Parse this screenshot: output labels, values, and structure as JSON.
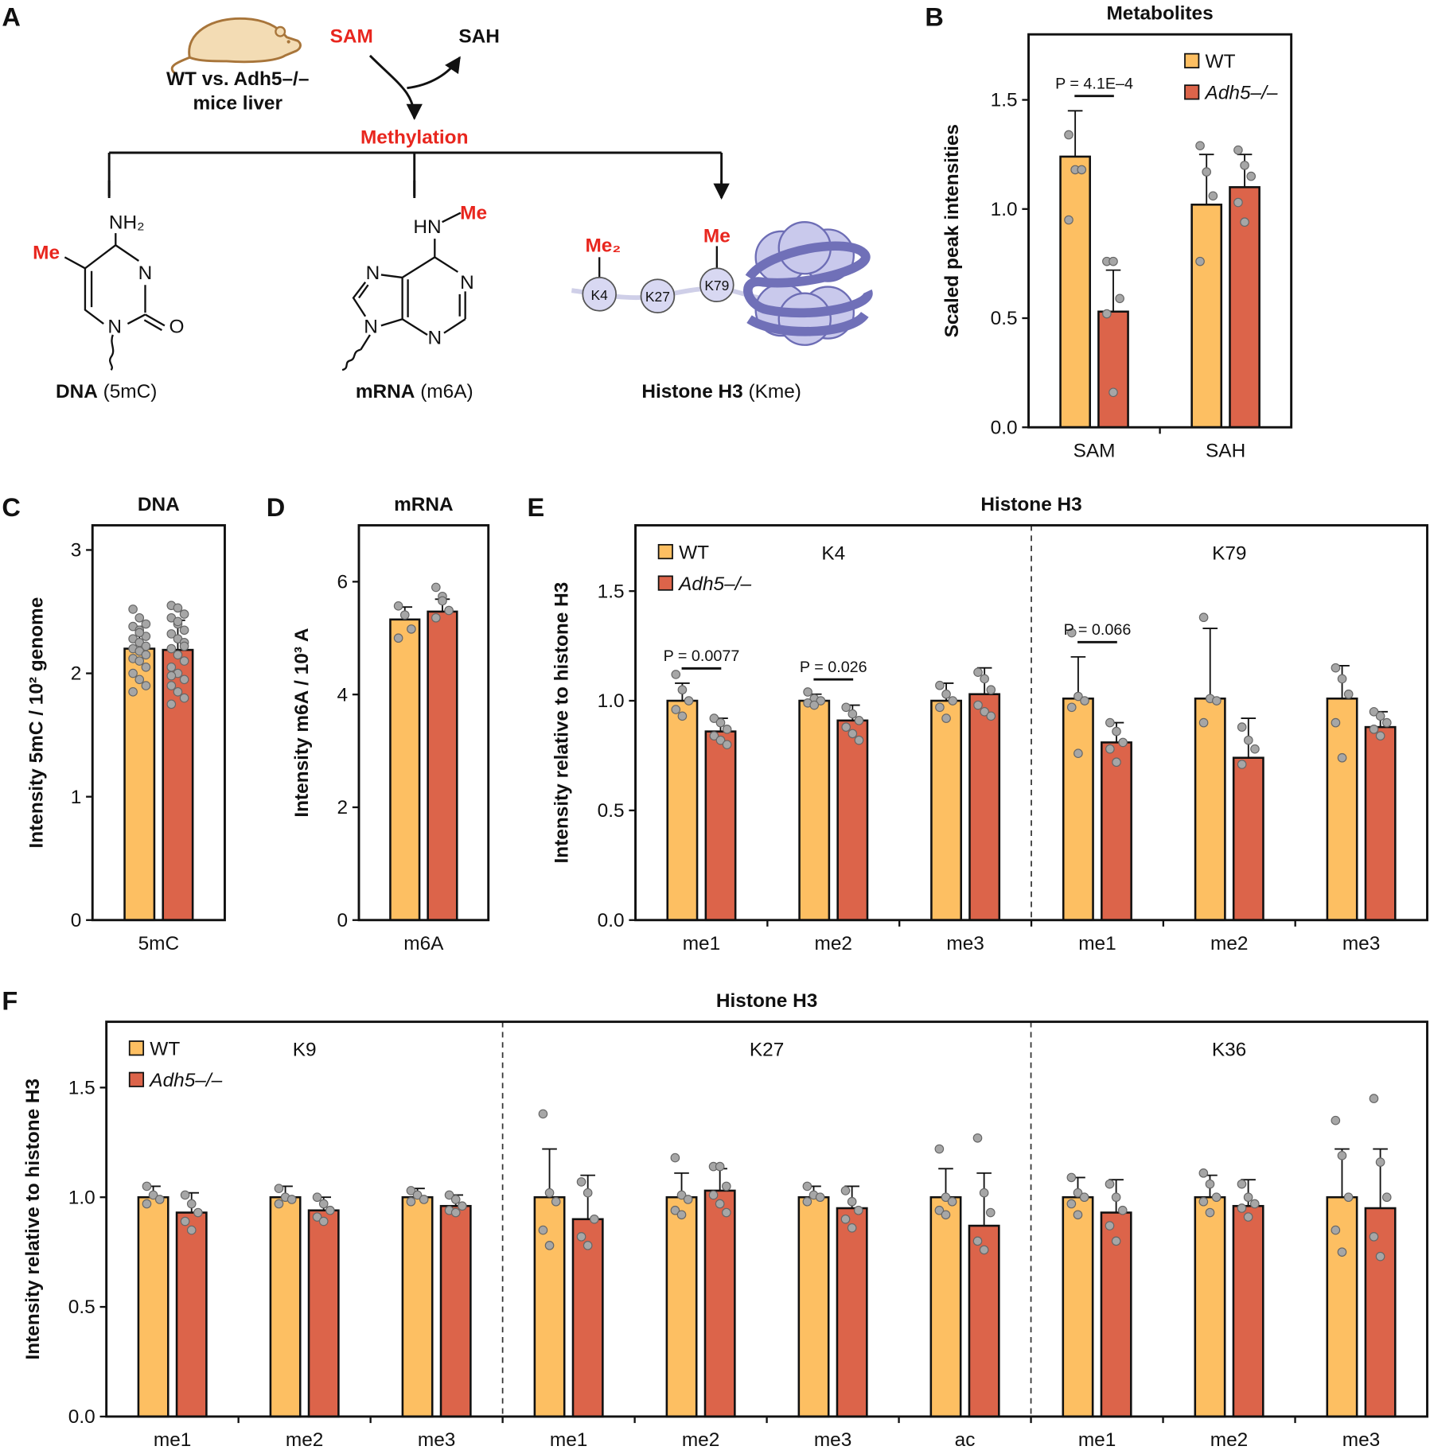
{
  "diagram": {
    "panel": "A",
    "mouse_label": [
      "WT vs. Adh5–/–",
      "mice liver"
    ],
    "substrate": "SAM",
    "product": "SAH",
    "process": "Methylation",
    "dna_atoms": [
      "NH₂",
      "Me",
      "N",
      "N",
      "O"
    ],
    "mrna_atoms": [
      "HN",
      "Me",
      "N",
      "N",
      "N",
      "N",
      "N"
    ],
    "histone_labels": [
      "Me₂",
      "Me",
      "K4",
      "K27",
      "K79"
    ],
    "targets": [
      {
        "name": "DNA",
        "detail": "(5mC)"
      },
      {
        "name": "mRNA",
        "detail": "(m6A)"
      },
      {
        "name": "Histone H3",
        "detail": "(Kme)"
      }
    ]
  },
  "chart_data": [
    {
      "type": "bar",
      "panel": "B",
      "title": "Metabolites",
      "y_label": "Scaled peak intensities",
      "legend": "upper right",
      "categories": [
        "SAM",
        "SAH"
      ],
      "series": [
        {
          "name": "WT",
          "color": "#fdbf62",
          "values": [
            1.24,
            1.02
          ],
          "errors": [
            0.21,
            0.23
          ],
          "points": [
            [
              1.34,
              1.18,
              1.18,
              0.95
            ],
            [
              1.29,
              1.17,
              1.06,
              0.76
            ]
          ]
        },
        {
          "name": "Adh5–/–",
          "color": "#dc644a",
          "values": [
            0.53,
            1.1
          ],
          "errors": [
            0.19,
            0.15
          ],
          "points": [
            [
              0.76,
              0.76,
              0.59,
              0.52,
              0.16
            ],
            [
              1.27,
              1.2,
              1.15,
              1.03,
              0.94
            ]
          ]
        }
      ],
      "annotations": [
        "P = 4.1E–4"
      ],
      "ylim": [
        0,
        1.8
      ],
      "yticks": [
        {
          "value": 0,
          "label": "0.0"
        },
        {
          "value": 0.5,
          "label": "0.5"
        },
        {
          "value": 1,
          "label": "1.0"
        },
        {
          "value": 1.5,
          "label": "1.5"
        }
      ]
    },
    {
      "type": "bar",
      "panel": "C",
      "title": "DNA",
      "y_label": "Intensity 5mC / 10² genome",
      "categories": [
        "5mC"
      ],
      "series": [
        {
          "name": "WT",
          "color": "#fdbf62",
          "values": [
            2.2
          ],
          "errors": [
            0.18
          ],
          "points": [
            [
              2.52,
              2.45,
              2.4,
              2.38,
              2.35,
              2.3,
              2.28,
              2.25,
              2.22,
              2.2,
              2.18,
              2.15,
              2.12,
              2.1,
              2.05,
              2.0,
              1.95,
              1.9,
              1.85,
              2.33
            ]
          ]
        },
        {
          "name": "Adh5–/–",
          "color": "#dc644a",
          "values": [
            2.19
          ],
          "errors": [
            0.24
          ],
          "points": [
            [
              2.55,
              2.53,
              2.48,
              2.45,
              2.4,
              2.35,
              2.32,
              2.28,
              2.25,
              2.2,
              2.15,
              2.1,
              2.05,
              2.0,
              1.95,
              1.9,
              1.85,
              1.8,
              1.75,
              2.42,
              2.22,
              1.98
            ]
          ]
        }
      ],
      "ylim": [
        0,
        3.2
      ],
      "yticks": [
        0,
        1,
        2,
        3
      ]
    },
    {
      "type": "bar",
      "panel": "D",
      "title": "mRNA",
      "y_label": "Intensity m6A / 10³ A",
      "categories": [
        "m6A"
      ],
      "series": [
        {
          "name": "WT",
          "color": "#fdbf62",
          "values": [
            5.33
          ],
          "errors": [
            0.22
          ],
          "points": [
            [
              5.57,
              5.41,
              5.16,
              5.0
            ]
          ]
        },
        {
          "name": "Adh5–/–",
          "color": "#dc644a",
          "values": [
            5.47
          ],
          "errors": [
            0.22
          ],
          "points": [
            [
              5.9,
              5.74,
              5.49,
              5.36,
              5.66
            ]
          ]
        }
      ],
      "ylim": [
        0,
        7
      ],
      "yticks": [
        0,
        2,
        4,
        6
      ]
    },
    {
      "type": "bar",
      "panel": "E",
      "title": "Histone H3",
      "y_label": "Intensity relative to histone H3",
      "legend": "upper left",
      "group_labels": [
        "K4",
        "K79"
      ],
      "categories": [
        "me1",
        "me2",
        "me3",
        "me1",
        "me2",
        "me3"
      ],
      "series": [
        {
          "name": "WT",
          "color": "#fdbf62",
          "values": [
            1.0,
            1.0,
            1.0,
            1.01,
            1.01,
            1.01
          ],
          "errors": [
            0.08,
            0.03,
            0.08,
            0.19,
            0.32,
            0.15
          ],
          "points": [
            [
              1.12,
              1.05,
              1.0,
              0.96,
              0.93
            ],
            [
              1.04,
              1.01,
              1.0,
              0.99,
              0.98
            ],
            [
              1.07,
              1.03,
              1.0,
              0.97,
              0.92
            ],
            [
              1.31,
              1.02,
              1.0,
              0.97,
              0.76
            ],
            [
              1.38,
              1.01,
              1.0,
              0.9
            ],
            [
              1.15,
              1.1,
              1.03,
              0.9,
              0.74
            ]
          ]
        },
        {
          "name": "Adh5–/–",
          "color": "#dc644a",
          "values": [
            0.86,
            0.91,
            1.03,
            0.81,
            0.74,
            0.88
          ],
          "errors": [
            0.06,
            0.07,
            0.12,
            0.09,
            0.18,
            0.07
          ],
          "points": [
            [
              0.92,
              0.9,
              0.87,
              0.84,
              0.82,
              0.8
            ],
            [
              0.97,
              0.94,
              0.91,
              0.88,
              0.85,
              0.82
            ],
            [
              1.13,
              1.1,
              1.05,
              0.98,
              0.95,
              0.93
            ],
            [
              0.9,
              0.86,
              0.81,
              0.78,
              0.72
            ],
            [
              0.88,
              0.82,
              0.78,
              0.71
            ],
            [
              0.95,
              0.93,
              0.9,
              0.87,
              0.84
            ]
          ]
        }
      ],
      "annotations": [
        "P = 0.0077",
        "P = 0.026",
        "P = 0.066"
      ],
      "ylim": [
        0,
        1.8
      ],
      "yticks": [
        {
          "value": 0,
          "label": "0.0"
        },
        {
          "value": 0.5,
          "label": "0.5"
        },
        {
          "value": 1,
          "label": "1.0"
        },
        {
          "value": 1.5,
          "label": "1.5"
        }
      ]
    },
    {
      "type": "bar",
      "panel": "F",
      "title": "Histone H3",
      "y_label": "Intensity relative to histone H3",
      "legend": "upper left",
      "group_labels": [
        "K9",
        "K27",
        "K36"
      ],
      "categories": [
        "me1",
        "me2",
        "me3",
        "me1",
        "me2",
        "me3",
        "ac",
        "me1",
        "me2",
        "me3"
      ],
      "series": [
        {
          "name": "WT",
          "color": "#fdbf62",
          "values": [
            1.0,
            1.0,
            1.0,
            1.0,
            1.0,
            1.0,
            1.0,
            1.0,
            1.0,
            1.0
          ],
          "errors": [
            0.05,
            0.05,
            0.04,
            0.22,
            0.11,
            0.05,
            0.13,
            0.09,
            0.1,
            0.22
          ],
          "points": [
            [
              1.05,
              1.01,
              0.99,
              0.97
            ],
            [
              1.04,
              1.0,
              0.99,
              0.97
            ],
            [
              1.03,
              1.01,
              0.99,
              0.98
            ],
            [
              1.38,
              1.02,
              0.98,
              0.85,
              0.78
            ],
            [
              1.18,
              1.01,
              0.99,
              0.94,
              0.92
            ],
            [
              1.05,
              1.01,
              1.0,
              0.98
            ],
            [
              1.22,
              1.0,
              0.98,
              0.94,
              0.92
            ],
            [
              1.09,
              1.02,
              1.0,
              0.97,
              0.92
            ],
            [
              1.11,
              1.06,
              1.0,
              0.98,
              0.93
            ],
            [
              1.35,
              1.19,
              1.0,
              0.85,
              0.75
            ]
          ]
        },
        {
          "name": "Adh5–/–",
          "color": "#dc644a",
          "values": [
            0.93,
            0.94,
            0.96,
            0.9,
            1.03,
            0.95,
            0.87,
            0.93,
            0.96,
            0.95
          ],
          "errors": [
            0.09,
            0.06,
            0.05,
            0.2,
            0.1,
            0.1,
            0.24,
            0.15,
            0.12,
            0.27
          ],
          "points": [
            [
              1.01,
              0.97,
              0.93,
              0.89,
              0.85
            ],
            [
              1.0,
              0.97,
              0.94,
              0.91,
              0.89
            ],
            [
              1.01,
              0.99,
              0.96,
              0.94,
              0.93
            ],
            [
              1.07,
              1.02,
              0.9,
              0.82,
              0.78
            ],
            [
              1.14,
              1.14,
              1.05,
              1.01,
              0.97,
              0.93
            ],
            [
              1.03,
              0.98,
              0.94,
              0.9,
              0.86
            ],
            [
              1.27,
              1.02,
              0.93,
              0.8,
              0.76
            ],
            [
              1.06,
              1.0,
              0.94,
              0.87,
              0.8
            ],
            [
              1.06,
              1.0,
              0.97,
              0.95,
              0.91
            ],
            [
              1.45,
              1.16,
              1.0,
              0.82,
              0.73
            ]
          ]
        }
      ],
      "ylim": [
        0,
        1.8
      ],
      "yticks": [
        {
          "value": 0,
          "label": "0.0"
        },
        {
          "value": 0.5,
          "label": "0.5"
        },
        {
          "value": 1,
          "label": "1.0"
        },
        {
          "value": 1.5,
          "label": "1.5"
        }
      ]
    }
  ]
}
